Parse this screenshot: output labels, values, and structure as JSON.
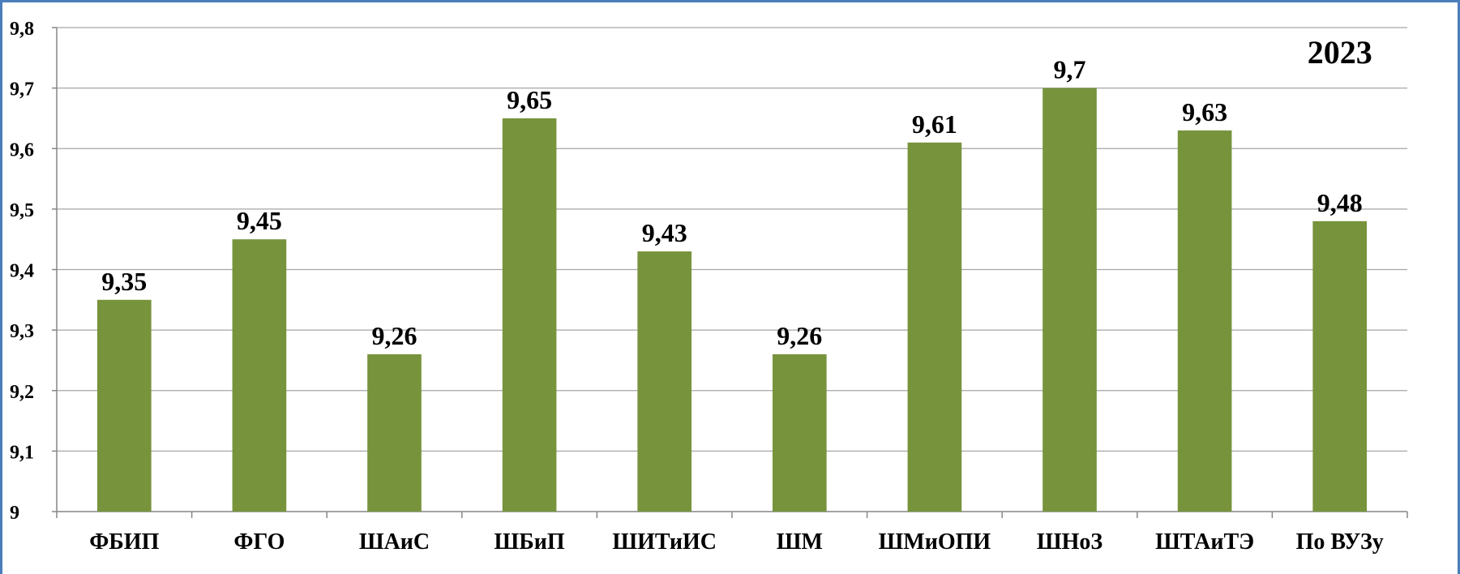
{
  "chart_data": {
    "type": "bar",
    "title": "",
    "annotation": "2023",
    "xlabel": "",
    "ylabel": "",
    "categories": [
      "ФБИП",
      "ФГО",
      "ШАиС",
      "ШБиП",
      "ШИТиИС",
      "ШМ",
      "ШМиОПИ",
      "ШНоЗ",
      "ШТАиТЭ",
      "По ВУЗу"
    ],
    "values": [
      9.35,
      9.45,
      9.26,
      9.65,
      9.43,
      9.26,
      9.61,
      9.7,
      9.63,
      9.48
    ],
    "data_labels": [
      "9,35",
      "9,45",
      "9,26",
      "9,65",
      "9,43",
      "9,26",
      "9,61",
      "9,7",
      "9,63",
      "9,48"
    ],
    "ylim": [
      9,
      9.8
    ],
    "yticks": [
      9,
      9.1,
      9.2,
      9.3,
      9.4,
      9.5,
      9.6,
      9.7,
      9.8
    ],
    "ytick_labels": [
      "9",
      "9,1",
      "9,2",
      "9,3",
      "9,4",
      "9,5",
      "9,6",
      "9,7",
      "9,8"
    ],
    "grid": true,
    "legend": "none",
    "colors": {
      "bar": "#77933c",
      "grid": "#a6a6a6",
      "axis": "#868686",
      "border": "#4a7ebb"
    }
  }
}
